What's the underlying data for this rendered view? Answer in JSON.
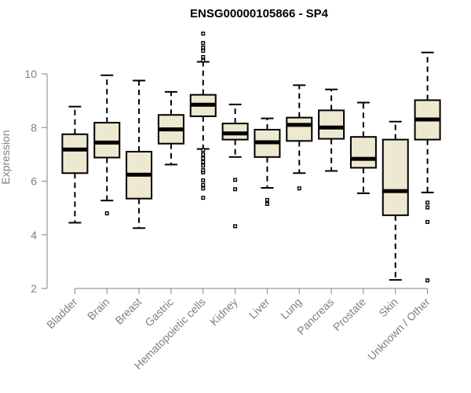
{
  "chart_data": {
    "type": "boxplot",
    "title": "ENSG00000105866 - SP4",
    "ylabel": "Expression",
    "xlabel": "",
    "ylim": [
      2,
      11.6
    ],
    "yticks": [
      2,
      4,
      6,
      8,
      10
    ],
    "colors": {
      "box_fill": "#ede8d0",
      "stroke": "#000000",
      "axis": "#808080",
      "outlier": "#000000"
    },
    "categories": [
      "Bladder",
      "Brain",
      "Breast",
      "Gastric",
      "Hematopoietic cells",
      "Kidney",
      "Liver",
      "Lung",
      "Pancreas",
      "Prostate",
      "Skin",
      "Unknown / Other"
    ],
    "boxes": [
      {
        "category": "Bladder",
        "whisker_low": 4.45,
        "q1": 6.3,
        "median": 7.18,
        "q3": 7.75,
        "whisker_high": 8.78,
        "outliers": []
      },
      {
        "category": "Brain",
        "whisker_low": 5.28,
        "q1": 6.88,
        "median": 7.44,
        "q3": 8.18,
        "whisker_high": 9.95,
        "outliers": [
          4.8
        ]
      },
      {
        "category": "Breast",
        "whisker_low": 4.25,
        "q1": 5.35,
        "median": 6.24,
        "q3": 7.1,
        "whisker_high": 9.75,
        "outliers": []
      },
      {
        "category": "Gastric",
        "whisker_low": 6.62,
        "q1": 7.4,
        "median": 7.93,
        "q3": 8.47,
        "whisker_high": 9.33,
        "outliers": []
      },
      {
        "category": "Hematopoietic cells",
        "whisker_low": 7.2,
        "q1": 8.42,
        "median": 8.85,
        "q3": 9.22,
        "whisker_high": 10.45,
        "outliers": [
          5.38,
          5.73,
          5.86,
          6.03,
          6.33,
          6.41,
          6.58,
          6.72,
          6.85,
          7.0,
          7.16,
          10.5,
          10.63,
          10.86,
          10.98,
          11.15,
          11.5
        ]
      },
      {
        "category": "Kidney",
        "whisker_low": 6.9,
        "q1": 7.55,
        "median": 7.78,
        "q3": 8.15,
        "whisker_high": 8.86,
        "outliers": [
          6.05,
          5.7,
          4.32
        ]
      },
      {
        "category": "Liver",
        "whisker_low": 5.75,
        "q1": 6.9,
        "median": 7.45,
        "q3": 7.92,
        "whisker_high": 8.34,
        "outliers": [
          5.3,
          5.15
        ]
      },
      {
        "category": "Lung",
        "whisker_low": 6.3,
        "q1": 7.5,
        "median": 8.1,
        "q3": 8.37,
        "whisker_high": 9.58,
        "outliers": [
          5.73
        ]
      },
      {
        "category": "Pancreas",
        "whisker_low": 6.38,
        "q1": 7.58,
        "median": 8.0,
        "q3": 8.64,
        "whisker_high": 9.42,
        "outliers": []
      },
      {
        "category": "Prostate",
        "whisker_low": 5.55,
        "q1": 6.5,
        "median": 6.83,
        "q3": 7.65,
        "whisker_high": 8.93,
        "outliers": []
      },
      {
        "category": "Skin",
        "whisker_low": 2.32,
        "q1": 4.73,
        "median": 5.63,
        "q3": 7.55,
        "whisker_high": 8.22,
        "outliers": []
      },
      {
        "category": "Unknown / Other",
        "whisker_low": 5.58,
        "q1": 7.55,
        "median": 8.3,
        "q3": 9.02,
        "whisker_high": 10.8,
        "outliers": [
          5.2,
          5.02,
          4.48,
          2.3
        ]
      }
    ]
  }
}
